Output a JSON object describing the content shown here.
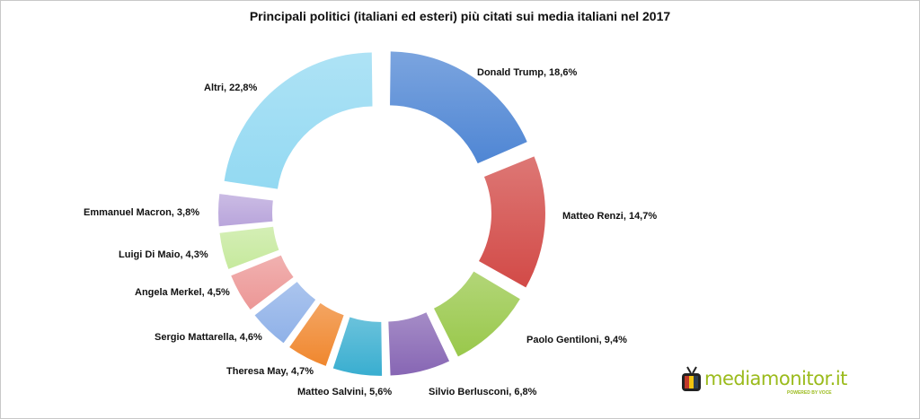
{
  "chart_data": {
    "type": "pie",
    "variant": "exploded-doughnut",
    "title": "Principali politici (italiani ed esteri) più citati sui media italiani nel 2017",
    "unit": "%",
    "legend": "none",
    "slices": [
      {
        "label": "Donald Trump",
        "value": 18.6,
        "display": "Donald Trump, 18,6%",
        "color": "#4f86d4"
      },
      {
        "label": "Matteo Renzi",
        "value": 14.7,
        "display": "Matteo Renzi, 14,7%",
        "color": "#d24a47"
      },
      {
        "label": "Paolo Gentiloni",
        "value": 9.4,
        "display": "Paolo Gentiloni, 9,4%",
        "color": "#99c84b"
      },
      {
        "label": "Silvio Berlusconi",
        "value": 6.8,
        "display": "Silvio Berlusconi, 6,8%",
        "color": "#8766b4"
      },
      {
        "label": "Matteo Salvini",
        "value": 5.6,
        "display": "Matteo Salvini, 5,6%",
        "color": "#39aed0"
      },
      {
        "label": "Theresa May",
        "value": 4.7,
        "display": "Theresa May, 4,7%",
        "color": "#f0872e"
      },
      {
        "label": "Sergio Mattarella",
        "value": 4.6,
        "display": "Sergio Mattarella, 4,6%",
        "color": "#8fb1e8"
      },
      {
        "label": "Angela Merkel",
        "value": 4.5,
        "display": "Angela Merkel, 4,5%",
        "color": "#ec9796"
      },
      {
        "label": "Luigi Di Maio",
        "value": 4.3,
        "display": "Luigi Di Maio, 4,3%",
        "color": "#c6e99d"
      },
      {
        "label": "Emmanuel Macron",
        "value": 3.8,
        "display": "Emmanuel Macron, 3,8%",
        "color": "#b9a5db"
      },
      {
        "label": "Altri",
        "value": 22.8,
        "display": "Altri, 22,8%",
        "color": "#93d9f2"
      }
    ]
  },
  "logo": {
    "text": "mediamonitor.it",
    "sub": "POWERED BY VOCE",
    "tv_colors": [
      "#c0392b",
      "#f1c40f",
      "#2c3e50"
    ]
  }
}
